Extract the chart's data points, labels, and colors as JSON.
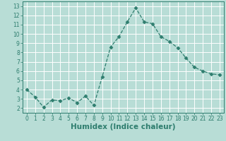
{
  "x": [
    0,
    1,
    2,
    3,
    4,
    5,
    6,
    7,
    8,
    9,
    10,
    11,
    12,
    13,
    14,
    15,
    16,
    17,
    18,
    19,
    20,
    21,
    22,
    23
  ],
  "y": [
    4.0,
    3.2,
    2.1,
    2.9,
    2.8,
    3.1,
    2.6,
    3.3,
    2.3,
    5.4,
    8.6,
    9.7,
    11.3,
    12.8,
    11.3,
    11.1,
    9.7,
    9.2,
    8.5,
    7.4,
    6.4,
    6.0,
    5.7,
    5.6
  ],
  "line_color": "#2e7d6e",
  "marker": "D",
  "marker_size": 2.5,
  "bg_color": "#b8ddd6",
  "grid_color": "#ffffff",
  "xlabel": "Humidex (Indice chaleur)",
  "xlim": [
    -0.5,
    23.5
  ],
  "ylim": [
    1.5,
    13.5
  ],
  "yticks": [
    2,
    3,
    4,
    5,
    6,
    7,
    8,
    9,
    10,
    11,
    12,
    13
  ],
  "xticks": [
    0,
    1,
    2,
    3,
    4,
    5,
    6,
    7,
    8,
    9,
    10,
    11,
    12,
    13,
    14,
    15,
    16,
    17,
    18,
    19,
    20,
    21,
    22,
    23
  ],
  "tick_color": "#2e7d6e",
  "label_fontsize": 5.5,
  "xlabel_fontsize": 7.5
}
